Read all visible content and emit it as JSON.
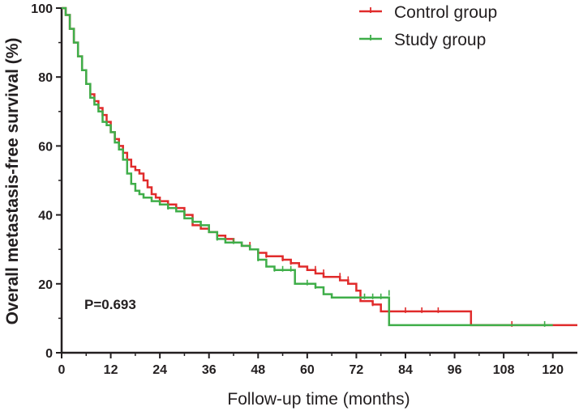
{
  "chart_data": {
    "type": "line",
    "subtype": "kaplan-meier",
    "title": "",
    "xlabel": "Follow-up time (months)",
    "ylabel": "Overall metastasis-free survival (%)",
    "xlim": [
      0,
      126
    ],
    "ylim": [
      0,
      100
    ],
    "xticks": [
      "0",
      "12",
      "24",
      "36",
      "48",
      "60",
      "72",
      "84",
      "96",
      "108",
      "120"
    ],
    "yticks": [
      "0",
      "20",
      "40",
      "60",
      "80",
      "100"
    ],
    "annotation": "P=0.693",
    "legend_position": "top-right",
    "series": [
      {
        "name": "Control group",
        "color": "#e02b2b",
        "points": [
          [
            0,
            100
          ],
          [
            1,
            98
          ],
          [
            2,
            94
          ],
          [
            3,
            90
          ],
          [
            4,
            86
          ],
          [
            5,
            82
          ],
          [
            6,
            78
          ],
          [
            7,
            75
          ],
          [
            8,
            73
          ],
          [
            9,
            71
          ],
          [
            10,
            69
          ],
          [
            11,
            67
          ],
          [
            12,
            64
          ],
          [
            13,
            62
          ],
          [
            14,
            60
          ],
          [
            15,
            58
          ],
          [
            16,
            56
          ],
          [
            17,
            54
          ],
          [
            18,
            53
          ],
          [
            19,
            52
          ],
          [
            20,
            50
          ],
          [
            21,
            48
          ],
          [
            22,
            46
          ],
          [
            23,
            45
          ],
          [
            24,
            44
          ],
          [
            26,
            43
          ],
          [
            28,
            42
          ],
          [
            30,
            40
          ],
          [
            32,
            37
          ],
          [
            34,
            36
          ],
          [
            36,
            35
          ],
          [
            38,
            34
          ],
          [
            40,
            33
          ],
          [
            42,
            32
          ],
          [
            44,
            31
          ],
          [
            46,
            30
          ],
          [
            48,
            29
          ],
          [
            50,
            28
          ],
          [
            52,
            28
          ],
          [
            54,
            27
          ],
          [
            56,
            26
          ],
          [
            58,
            25
          ],
          [
            60,
            24
          ],
          [
            62,
            23
          ],
          [
            64,
            22
          ],
          [
            66,
            22
          ],
          [
            68,
            21
          ],
          [
            70,
            20
          ],
          [
            72,
            18
          ],
          [
            73,
            15
          ],
          [
            76,
            14
          ],
          [
            78,
            12
          ],
          [
            80,
            12
          ],
          [
            84,
            12
          ],
          [
            99,
            12
          ],
          [
            100,
            8
          ],
          [
            126,
            8
          ]
        ],
        "censor_marks": [
          [
            28,
            42
          ],
          [
            30,
            40
          ],
          [
            38,
            34
          ],
          [
            40,
            33
          ],
          [
            46,
            31
          ],
          [
            50,
            28
          ],
          [
            54,
            27
          ],
          [
            56,
            26
          ],
          [
            62,
            24
          ],
          [
            64,
            23
          ],
          [
            68,
            22
          ],
          [
            70,
            21
          ],
          [
            76,
            14
          ],
          [
            84,
            12
          ],
          [
            88,
            12
          ],
          [
            92,
            12
          ],
          [
            110,
            8
          ]
        ]
      },
      {
        "name": "Study group",
        "color": "#3fae49",
        "points": [
          [
            0,
            100
          ],
          [
            1,
            98
          ],
          [
            2,
            94
          ],
          [
            3,
            90
          ],
          [
            4,
            86
          ],
          [
            5,
            82
          ],
          [
            6,
            78
          ],
          [
            7,
            74
          ],
          [
            8,
            72
          ],
          [
            9,
            70
          ],
          [
            10,
            67
          ],
          [
            11,
            66
          ],
          [
            12,
            64
          ],
          [
            13,
            61
          ],
          [
            14,
            59
          ],
          [
            15,
            56
          ],
          [
            16,
            52
          ],
          [
            17,
            49
          ],
          [
            18,
            47
          ],
          [
            19,
            46
          ],
          [
            20,
            45
          ],
          [
            22,
            44
          ],
          [
            24,
            43
          ],
          [
            26,
            42
          ],
          [
            28,
            41
          ],
          [
            30,
            39
          ],
          [
            32,
            38
          ],
          [
            34,
            37
          ],
          [
            36,
            35
          ],
          [
            38,
            33
          ],
          [
            40,
            32
          ],
          [
            42,
            32
          ],
          [
            44,
            31
          ],
          [
            46,
            30
          ],
          [
            48,
            27
          ],
          [
            50,
            25
          ],
          [
            52,
            24
          ],
          [
            54,
            24
          ],
          [
            56,
            24
          ],
          [
            57,
            20
          ],
          [
            60,
            20
          ],
          [
            62,
            19
          ],
          [
            64,
            17
          ],
          [
            66,
            16
          ],
          [
            68,
            16
          ],
          [
            70,
            16
          ],
          [
            74,
            16
          ],
          [
            78,
            16
          ],
          [
            80,
            8
          ],
          [
            84,
            8
          ],
          [
            96,
            8
          ],
          [
            108,
            8
          ],
          [
            120,
            8
          ]
        ],
        "censor_marks": [
          [
            26,
            42
          ],
          [
            32,
            38
          ],
          [
            34,
            37
          ],
          [
            38,
            33
          ],
          [
            42,
            32
          ],
          [
            48,
            27
          ],
          [
            52,
            24
          ],
          [
            54,
            24
          ],
          [
            56,
            24
          ],
          [
            60,
            20
          ],
          [
            62,
            19
          ],
          [
            74,
            16
          ],
          [
            76,
            16
          ],
          [
            78,
            16
          ],
          [
            80,
            17
          ],
          [
            118,
            8
          ]
        ]
      }
    ]
  }
}
